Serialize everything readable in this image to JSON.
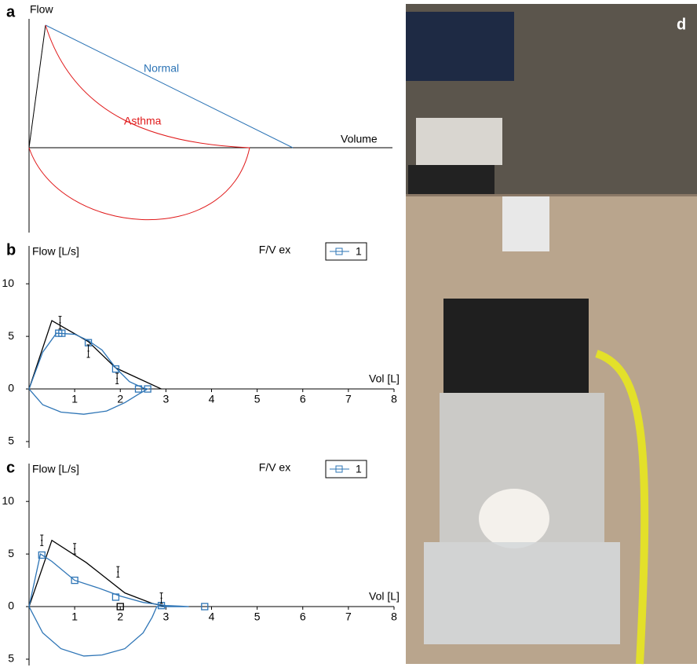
{
  "schematic": {
    "label": "a",
    "y_label": "Flow",
    "x_label": "Volume",
    "normal_label": "Normal",
    "asthma_label": "Asthma"
  },
  "photo": {
    "label": "d"
  },
  "chart_data": [
    {
      "type": "line",
      "panel_label": "b",
      "title": "F/V ex",
      "y_label": "Flow [L/s]",
      "x_label": "Vol [L]",
      "xlim": [
        0,
        8
      ],
      "ylim": [
        -5.6,
        13.6
      ],
      "xticks": [
        1,
        2,
        3,
        4,
        5,
        6,
        7,
        8
      ],
      "yticks": [
        {
          "value": -5,
          "label": "5"
        },
        0,
        5,
        10
      ],
      "series": [
        {
          "name": "1",
          "color": "#2e75b6",
          "x": [
            0,
            0.3,
            0.6,
            1,
            1.3,
            1.6,
            1.9,
            2.2,
            2.5,
            2.6,
            2.4,
            2.1,
            1.7,
            1.2,
            0.7,
            0.3,
            0
          ],
          "values": [
            0,
            3.5,
            5.3,
            5.2,
            4.6,
            3.7,
            2,
            0.7,
            0.1,
            0,
            -0.5,
            -1.3,
            -2.1,
            -2.4,
            -2.2,
            -1.5,
            0
          ]
        }
      ],
      "reference": {
        "color": "#000000",
        "x": [
          0,
          0.5,
          1.3,
          1.9,
          2.9
        ],
        "values": [
          0,
          6.5,
          4.5,
          2,
          0
        ]
      },
      "markers": {
        "color": "#2e75b6",
        "x": [
          0.65,
          0.72,
          1.3,
          1.9,
          2.4,
          2.6
        ],
        "values": [
          5.3,
          5.3,
          4.4,
          1.9,
          0,
          0
        ]
      },
      "extra_markers": {
        "color": "#000000",
        "x": [],
        "values": []
      },
      "error_bars": {
        "color": "#000000",
        "x": [
          0.68,
          1.3,
          1.93
        ],
        "values": [
          6.3,
          3.6,
          1.0
        ],
        "errors": [
          0.6,
          0.6,
          0.5
        ]
      }
    },
    {
      "type": "line",
      "panel_label": "c",
      "title": "F/V ex",
      "y_label": "Flow [L/s]",
      "x_label": "Vol [L]",
      "xlim": [
        0,
        8
      ],
      "ylim": [
        -5.6,
        13.6
      ],
      "xticks": [
        1,
        2,
        3,
        4,
        5,
        6,
        7,
        8
      ],
      "yticks": [
        {
          "value": -5,
          "label": "5"
        },
        0,
        5,
        10
      ],
      "series": [
        {
          "name": "1",
          "color": "#2e75b6",
          "x": [
            0,
            0.25,
            0.5,
            1,
            1.5,
            2,
            2.5,
            3,
            3.3,
            3.5,
            2.8,
            2.7,
            2.5,
            2.1,
            1.6,
            1.2,
            0.7,
            0.3,
            0
          ],
          "values": [
            0,
            5,
            4.3,
            2.5,
            1.8,
            1,
            0.4,
            0.1,
            0.05,
            0,
            0,
            -1,
            -2.5,
            -4,
            -4.6,
            -4.7,
            -4,
            -2.5,
            0
          ]
        }
      ],
      "reference": {
        "color": "#000000",
        "x": [
          0,
          0.5,
          1.25,
          2.1,
          2.7,
          3
        ],
        "values": [
          0,
          6.3,
          4.2,
          1.3,
          0.3,
          0
        ]
      },
      "markers": {
        "color": "#2e75b6",
        "x": [
          0.28,
          1,
          1.9,
          2.9,
          3.85
        ],
        "values": [
          4.9,
          2.5,
          0.9,
          0.1,
          0
        ]
      },
      "extra_markers": {
        "color": "#000000",
        "x": [
          2
        ],
        "values": [
          0
        ]
      },
      "error_bars": {
        "color": "#000000",
        "x": [
          0.28,
          1,
          1.95,
          2.9
        ],
        "values": [
          6.3,
          5.5,
          3.3,
          0.8
        ],
        "errors": [
          0.5,
          0.5,
          0.5,
          0.5
        ]
      }
    }
  ]
}
